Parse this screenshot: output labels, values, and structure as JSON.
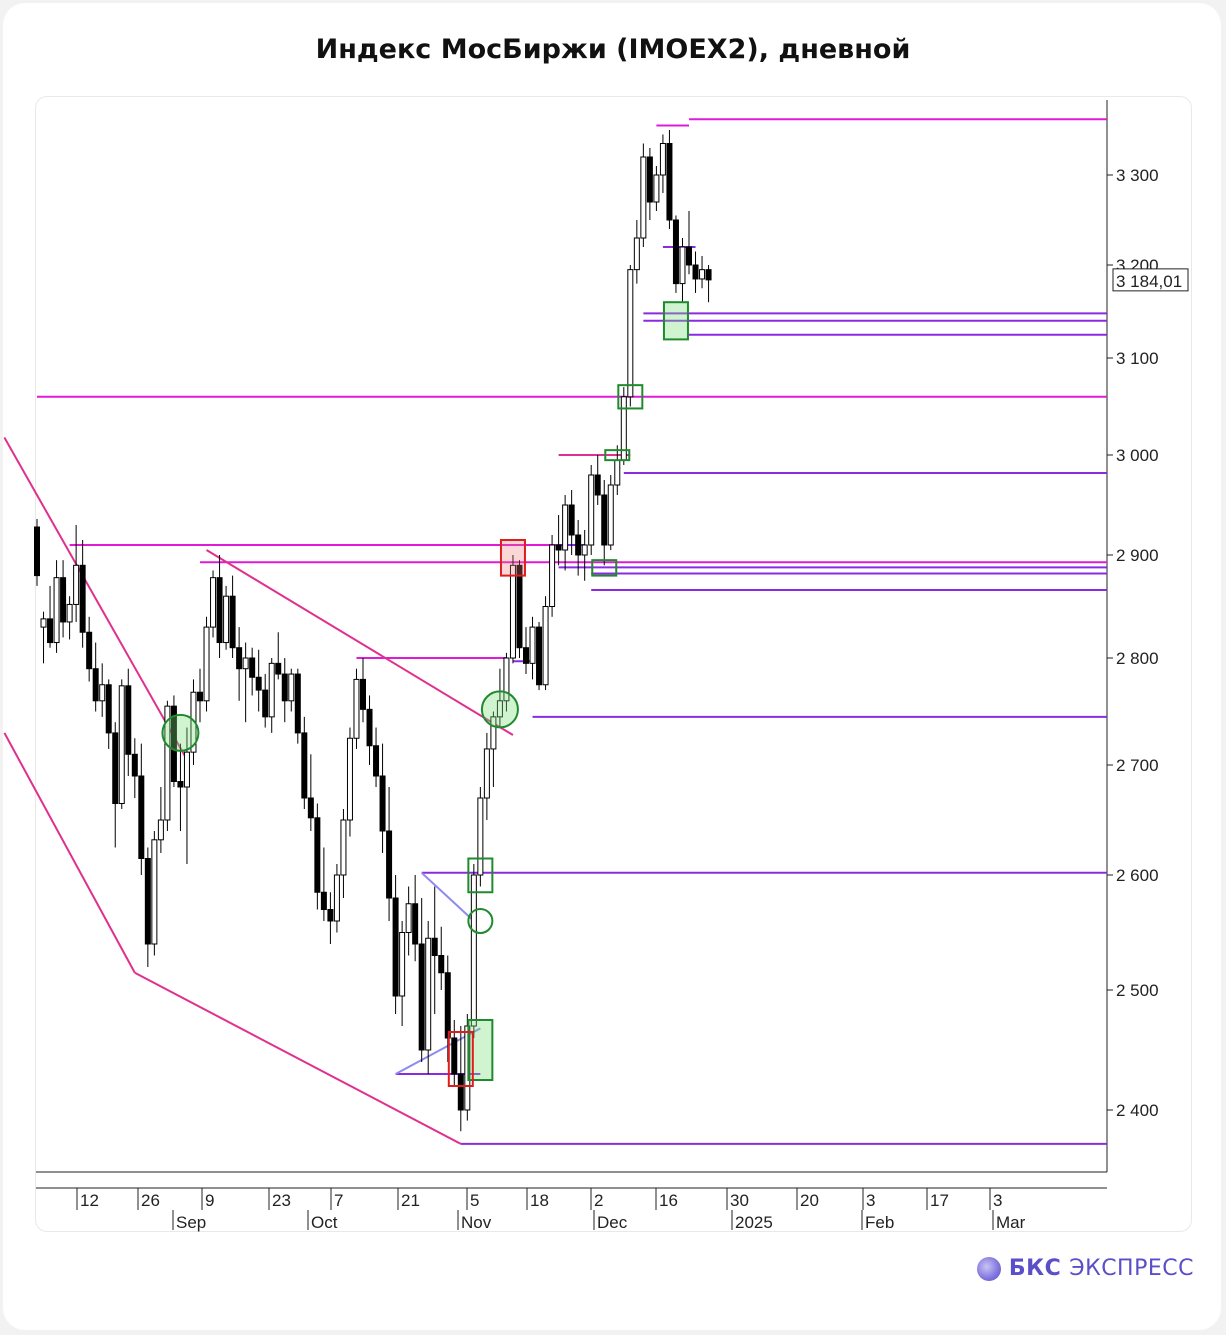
{
  "title": "Индекс МосБиржи (IMOEX2), дневной",
  "brand": {
    "bold": "БКС",
    "rest": "ЭКСПРЕСС",
    "icon": "bks-logo-icon"
  },
  "colors": {
    "bull": "#ffffff",
    "bear": "#000000",
    "magenta": "#e01bd6",
    "pink": "#e0308e",
    "purple": "#8a2be2",
    "lavender": "#8b8bf0",
    "green": "#1f8a2e",
    "red": "#e11c1c"
  },
  "chart_data": {
    "type": "candlestick",
    "title": "Индекс МосБиржи (IMOEX2), дневной",
    "last_price_label": "3 184,01",
    "last_price": 3184.01,
    "yticks": [
      {
        "label": "3 300",
        "v": 3300
      },
      {
        "label": "3 200",
        "v": 3200
      },
      {
        "label": "3 100",
        "v": 3100
      },
      {
        "label": "3 000",
        "v": 3000
      },
      {
        "label": "2 900",
        "v": 2900
      },
      {
        "label": "2 800",
        "v": 2800
      },
      {
        "label": "2 700",
        "v": 2700
      },
      {
        "label": "2 600",
        "v": 2600
      },
      {
        "label": "2 500",
        "v": 2500
      },
      {
        "label": "2 400",
        "v": 2400
      }
    ],
    "day_ticks": [
      "12",
      "26",
      "9",
      "23",
      "7",
      "21",
      "5",
      "18",
      "2",
      "16",
      "30",
      "20",
      "3",
      "17",
      "3"
    ],
    "month_ticks": [
      "Sep",
      "Oct",
      "Nov",
      "Dec",
      "2025",
      "Feb",
      "Mar"
    ],
    "candles": [
      [
        2928,
        2936,
        2870,
        2880
      ],
      [
        2830,
        2845,
        2795,
        2838
      ],
      [
        2838,
        2870,
        2810,
        2815
      ],
      [
        2815,
        2895,
        2805,
        2878
      ],
      [
        2878,
        2895,
        2820,
        2835
      ],
      [
        2835,
        2860,
        2818,
        2852
      ],
      [
        2852,
        2930,
        2835,
        2890
      ],
      [
        2890,
        2915,
        2810,
        2825
      ],
      [
        2825,
        2840,
        2778,
        2790
      ],
      [
        2790,
        2815,
        2750,
        2760
      ],
      [
        2760,
        2795,
        2745,
        2775
      ],
      [
        2775,
        2780,
        2715,
        2730
      ],
      [
        2730,
        2740,
        2625,
        2665
      ],
      [
        2665,
        2780,
        2660,
        2774
      ],
      [
        2774,
        2790,
        2690,
        2710
      ],
      [
        2710,
        2725,
        2670,
        2690
      ],
      [
        2690,
        2720,
        2600,
        2615
      ],
      [
        2615,
        2625,
        2520,
        2540
      ],
      [
        2540,
        2640,
        2530,
        2632
      ],
      [
        2632,
        2680,
        2620,
        2650
      ],
      [
        2650,
        2760,
        2640,
        2755
      ],
      [
        2755,
        2765,
        2680,
        2685
      ],
      [
        2685,
        2720,
        2640,
        2680
      ],
      [
        2680,
        2735,
        2610,
        2712
      ],
      [
        2712,
        2780,
        2700,
        2768
      ],
      [
        2768,
        2790,
        2740,
        2760
      ],
      [
        2760,
        2840,
        2750,
        2830
      ],
      [
        2830,
        2885,
        2820,
        2878
      ],
      [
        2878,
        2900,
        2800,
        2815
      ],
      [
        2815,
        2870,
        2808,
        2860
      ],
      [
        2860,
        2880,
        2800,
        2810
      ],
      [
        2810,
        2830,
        2760,
        2790
      ],
      [
        2790,
        2815,
        2740,
        2800
      ],
      [
        2800,
        2810,
        2765,
        2782
      ],
      [
        2782,
        2808,
        2750,
        2770
      ],
      [
        2770,
        2785,
        2735,
        2745
      ],
      [
        2745,
        2800,
        2730,
        2795
      ],
      [
        2795,
        2825,
        2780,
        2785
      ],
      [
        2785,
        2800,
        2740,
        2760
      ],
      [
        2760,
        2790,
        2750,
        2785
      ],
      [
        2785,
        2790,
        2720,
        2730
      ],
      [
        2730,
        2745,
        2660,
        2670
      ],
      [
        2670,
        2710,
        2640,
        2652
      ],
      [
        2652,
        2665,
        2570,
        2585
      ],
      [
        2585,
        2625,
        2560,
        2570
      ],
      [
        2570,
        2585,
        2540,
        2560
      ],
      [
        2560,
        2610,
        2550,
        2600
      ],
      [
        2600,
        2660,
        2580,
        2650
      ],
      [
        2650,
        2735,
        2635,
        2725
      ],
      [
        2725,
        2790,
        2715,
        2780
      ],
      [
        2780,
        2800,
        2740,
        2752
      ],
      [
        2752,
        2765,
        2700,
        2718
      ],
      [
        2718,
        2735,
        2680,
        2690
      ],
      [
        2690,
        2720,
        2620,
        2640
      ],
      [
        2640,
        2680,
        2560,
        2580
      ],
      [
        2580,
        2600,
        2480,
        2495
      ],
      [
        2495,
        2560,
        2470,
        2550
      ],
      [
        2550,
        2590,
        2530,
        2575
      ],
      [
        2575,
        2600,
        2525,
        2540
      ],
      [
        2540,
        2580,
        2440,
        2450
      ],
      [
        2450,
        2560,
        2430,
        2545
      ],
      [
        2545,
        2590,
        2480,
        2530
      ],
      [
        2530,
        2555,
        2500,
        2515
      ],
      [
        2515,
        2530,
        2440,
        2460
      ],
      [
        2460,
        2475,
        2420,
        2430
      ],
      [
        2430,
        2470,
        2380,
        2400
      ],
      [
        2400,
        2480,
        2390,
        2470
      ],
      [
        2470,
        2610,
        2460,
        2600
      ],
      [
        2600,
        2680,
        2590,
        2670
      ],
      [
        2670,
        2730,
        2650,
        2715
      ],
      [
        2715,
        2750,
        2680,
        2745
      ],
      [
        2745,
        2790,
        2735,
        2760
      ],
      [
        2760,
        2805,
        2750,
        2800
      ],
      [
        2800,
        2900,
        2795,
        2890
      ],
      [
        2890,
        2895,
        2800,
        2810
      ],
      [
        2810,
        2830,
        2785,
        2795
      ],
      [
        2795,
        2840,
        2780,
        2830
      ],
      [
        2830,
        2835,
        2770,
        2775
      ],
      [
        2775,
        2860,
        2770,
        2850
      ],
      [
        2850,
        2920,
        2840,
        2910
      ],
      [
        2910,
        2940,
        2890,
        2905
      ],
      [
        2905,
        2960,
        2885,
        2950
      ],
      [
        2950,
        2965,
        2900,
        2920
      ],
      [
        2920,
        2935,
        2880,
        2900
      ],
      [
        2900,
        2925,
        2875,
        2910
      ],
      [
        2910,
        2990,
        2900,
        2980
      ],
      [
        2980,
        3000,
        2950,
        2960
      ],
      [
        2960,
        2975,
        2890,
        2910
      ],
      [
        2910,
        2980,
        2905,
        2970
      ],
      [
        2970,
        3010,
        2960,
        2995
      ],
      [
        2995,
        3070,
        2990,
        3060
      ],
      [
        3060,
        3200,
        3050,
        3195
      ],
      [
        3195,
        3250,
        3180,
        3230
      ],
      [
        3230,
        3335,
        3220,
        3320
      ],
      [
        3320,
        3330,
        3250,
        3270
      ],
      [
        3270,
        3310,
        3260,
        3300
      ],
      [
        3300,
        3345,
        3280,
        3335
      ],
      [
        3335,
        3350,
        3240,
        3250
      ],
      [
        3250,
        3255,
        3170,
        3180
      ],
      [
        3180,
        3230,
        3160,
        3220
      ],
      [
        3220,
        3260,
        3190,
        3200
      ],
      [
        3200,
        3215,
        3170,
        3185
      ],
      [
        3185,
        3210,
        3175,
        3195
      ],
      [
        3195,
        3200,
        3160,
        3184.01
      ]
    ],
    "levels": [
      {
        "name": "3360-level",
        "value": 3362,
        "from": 100,
        "to": 180,
        "color": "magenta"
      },
      {
        "name": "3352-level",
        "value": 3355,
        "from": 95,
        "to": 100,
        "color": "magenta"
      },
      {
        "name": "3220-level",
        "value": 3220,
        "from": 96,
        "to": 101,
        "color": "purple"
      },
      {
        "name": "3148-level",
        "value": 3148,
        "from": 93,
        "to": 180,
        "color": "purple"
      },
      {
        "name": "3140-level",
        "value": 3140,
        "from": 93,
        "to": 180,
        "color": "purple"
      },
      {
        "name": "3125-level",
        "value": 3125,
        "from": 100,
        "to": 180,
        "color": "purple"
      },
      {
        "name": "3060-level",
        "value": 3060,
        "from": 0,
        "to": 180,
        "color": "magenta"
      },
      {
        "name": "3000-level",
        "value": 3000,
        "from": 80,
        "to": 91,
        "color": "pink"
      },
      {
        "name": "2982-level",
        "value": 2982,
        "from": 90,
        "to": 180,
        "color": "purple"
      },
      {
        "name": "2910-level",
        "value": 2910,
        "from": 5,
        "to": 84,
        "color": "magenta"
      },
      {
        "name": "2893-level",
        "value": 2893,
        "from": 25,
        "to": 180,
        "color": "magenta"
      },
      {
        "name": "2888-level",
        "value": 2888,
        "from": 80,
        "to": 180,
        "color": "purple"
      },
      {
        "name": "2882-level",
        "value": 2882,
        "from": 85,
        "to": 180,
        "color": "purple"
      },
      {
        "name": "2866-level",
        "value": 2866,
        "from": 85,
        "to": 180,
        "color": "purple"
      },
      {
        "name": "2910-short",
        "value": 2910,
        "from": 80,
        "to": 84,
        "color": "purple"
      },
      {
        "name": "2800-level",
        "value": 2800,
        "from": 49,
        "to": 72,
        "color": "magenta"
      },
      {
        "name": "2800-short",
        "value": 2797,
        "from": 73,
        "to": 76,
        "color": "purple"
      },
      {
        "name": "2745-level",
        "value": 2745,
        "from": 76,
        "to": 180,
        "color": "purple"
      },
      {
        "name": "2602-level",
        "value": 2602,
        "from": 59,
        "to": 180,
        "color": "purple"
      },
      {
        "name": "2430-level",
        "value": 2430,
        "from": 55,
        "to": 68,
        "color": "purple"
      },
      {
        "name": "2368-level",
        "value": 2368,
        "from": 65,
        "to": 180,
        "color": "purple"
      }
    ],
    "trendlines": [
      {
        "name": "upper-channel-line",
        "p1": [
          -5,
          3018
        ],
        "p2": [
          23,
          2705
        ],
        "color": "pink"
      },
      {
        "name": "lower-channel-line",
        "p1": [
          -5,
          2730
        ],
        "p2": [
          15,
          2515
        ],
        "color": "pink"
      },
      {
        "name": "lower-channel-line-2",
        "p1": [
          15,
          2515
        ],
        "p2": [
          65,
          2368
        ],
        "color": "pink"
      },
      {
        "name": "descending-resistance-line",
        "p1": [
          26,
          2905
        ],
        "p2": [
          73,
          2728
        ],
        "color": "pink"
      },
      {
        "name": "wedge-upper-line",
        "p1": [
          59,
          2602
        ],
        "p2": [
          67,
          2560
        ],
        "color": "lavender"
      },
      {
        "name": "wedge-lower-line",
        "p1": [
          55,
          2430
        ],
        "p2": [
          68,
          2468
        ],
        "color": "lavender"
      }
    ],
    "markers": [
      {
        "name": "breakout-circle-sep",
        "shape": "circle",
        "x": 22,
        "v": 2730,
        "filled": true
      },
      {
        "name": "breakout-circle-dec",
        "shape": "circle",
        "x": 71,
        "v": 2752,
        "filled": true
      },
      {
        "name": "wedge-circle",
        "shape": "circle",
        "x": 68,
        "v": 2560,
        "filled": false
      },
      {
        "name": "green-box-2600",
        "shape": "box",
        "x": 68,
        "v1": 2585,
        "v2": 2615,
        "color": "green"
      },
      {
        "name": "green-box-2450",
        "shape": "box",
        "x": 68,
        "v1": 2425,
        "v2": 2475,
        "color": "green",
        "filled": true
      },
      {
        "name": "red-box-2450",
        "shape": "box",
        "x": 65,
        "v1": 2420,
        "v2": 2465,
        "color": "red"
      },
      {
        "name": "red-box-2890",
        "shape": "box",
        "x": 73,
        "v1": 2880,
        "v2": 2915,
        "color": "red",
        "filled": true
      },
      {
        "name": "green-box-2890",
        "shape": "box",
        "x": 87,
        "v1": 2880,
        "v2": 2895,
        "color": "green"
      },
      {
        "name": "green-box-3000",
        "shape": "box",
        "x": 89,
        "v1": 2995,
        "v2": 3005,
        "color": "green"
      },
      {
        "name": "green-box-3060",
        "shape": "box",
        "x": 91,
        "v1": 3048,
        "v2": 3072,
        "color": "green"
      },
      {
        "name": "green-box-3140",
        "shape": "box",
        "x": 98,
        "v1": 3120,
        "v2": 3160,
        "color": "green",
        "filled": true
      }
    ]
  }
}
